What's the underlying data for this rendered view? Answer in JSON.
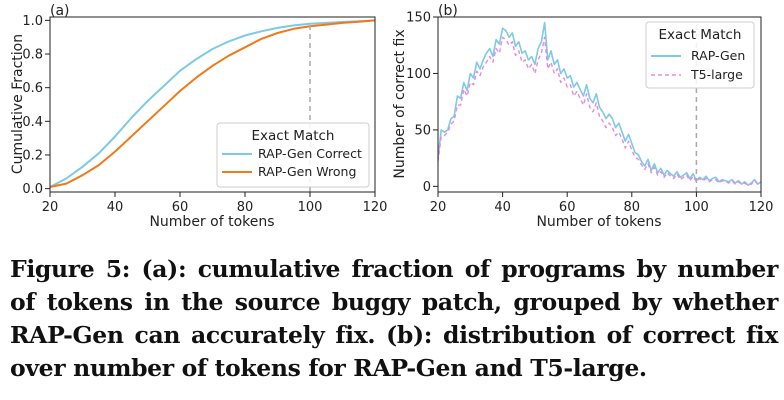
{
  "figure": {
    "caption": "Figure 5: (a): cumulative fraction of programs by number of tokens in the source buggy patch, grouped by whether RAP-Gen can accurately fix. (b): distribution of correct fix over number of tokens for RAP-Gen and T5-large."
  },
  "colors": {
    "cyan": "#7ec9e6",
    "orange": "#ef7a1a",
    "pink": "#e58ae0",
    "refline": "#aaaaaa"
  },
  "chart_data": [
    {
      "type": "line",
      "panel_label": "(a)",
      "xlabel": "Number of tokens",
      "ylabel": "Cumulative Fraction",
      "xlim": [
        20,
        120
      ],
      "ylim": [
        -0.02,
        1.02
      ],
      "xticks": [
        20,
        40,
        60,
        80,
        100,
        120
      ],
      "yticks": [
        0.0,
        0.2,
        0.4,
        0.6,
        0.8,
        1.0
      ],
      "xtick_labels": [
        "20",
        "40",
        "60",
        "80",
        "100",
        "120"
      ],
      "ytick_labels": [
        "0.0",
        "0.2",
        "0.4",
        "0.6",
        "0.8",
        "1.0"
      ],
      "vline_x": 100,
      "legend": {
        "title": "Exact Match",
        "location": "lower-right",
        "entries": [
          "RAP-Gen Correct",
          "RAP-Gen Wrong"
        ]
      },
      "x": [
        20,
        25,
        30,
        35,
        40,
        45,
        50,
        55,
        60,
        65,
        70,
        75,
        80,
        85,
        90,
        95,
        100,
        105,
        110,
        115,
        120
      ],
      "series": [
        {
          "name": "RAP-Gen Correct",
          "color": "cyan",
          "values": [
            0.01,
            0.06,
            0.13,
            0.21,
            0.31,
            0.42,
            0.52,
            0.61,
            0.7,
            0.77,
            0.83,
            0.875,
            0.91,
            0.935,
            0.955,
            0.97,
            0.98,
            0.985,
            0.99,
            0.995,
            1.0
          ]
        },
        {
          "name": "RAP-Gen Wrong",
          "color": "orange",
          "values": [
            0.01,
            0.03,
            0.08,
            0.14,
            0.22,
            0.31,
            0.4,
            0.49,
            0.58,
            0.66,
            0.73,
            0.79,
            0.84,
            0.89,
            0.925,
            0.95,
            0.965,
            0.975,
            0.985,
            0.992,
            1.0
          ]
        }
      ]
    },
    {
      "type": "line",
      "panel_label": "(b)",
      "xlabel": "Number of tokens",
      "ylabel": "Number of correct fix",
      "xlim": [
        20,
        120
      ],
      "ylim": [
        -5,
        150
      ],
      "xticks": [
        20,
        40,
        60,
        80,
        100,
        120
      ],
      "yticks": [
        0,
        50,
        100,
        150
      ],
      "xtick_labels": [
        "20",
        "40",
        "60",
        "80",
        "100",
        "120"
      ],
      "ytick_labels": [
        "0",
        "50",
        "100",
        "150"
      ],
      "vline_x": 100,
      "legend": {
        "title": "Exact Match",
        "location": "upper-right",
        "entries": [
          "RAP-Gen",
          "T5-large"
        ]
      },
      "x": [
        20,
        21,
        22,
        23,
        24,
        25,
        26,
        27,
        28,
        29,
        30,
        31,
        32,
        33,
        34,
        35,
        36,
        37,
        38,
        39,
        40,
        41,
        42,
        43,
        44,
        45,
        46,
        47,
        48,
        49,
        50,
        51,
        52,
        53,
        54,
        55,
        56,
        57,
        58,
        59,
        60,
        61,
        62,
        63,
        64,
        65,
        66,
        67,
        68,
        69,
        70,
        71,
        72,
        73,
        74,
        75,
        76,
        77,
        78,
        79,
        80,
        81,
        82,
        83,
        84,
        85,
        86,
        87,
        88,
        89,
        90,
        91,
        92,
        93,
        94,
        95,
        96,
        97,
        98,
        99,
        100,
        101,
        102,
        103,
        104,
        105,
        106,
        107,
        108,
        109,
        110,
        111,
        112,
        113,
        114,
        115,
        116,
        117,
        118,
        119,
        120
      ],
      "series": [
        {
          "name": "RAP-Gen",
          "color": "cyan",
          "values": [
            25,
            50,
            48,
            50,
            60,
            62,
            80,
            78,
            92,
            85,
            100,
            96,
            110,
            104,
            112,
            118,
            122,
            115,
            130,
            126,
            140,
            138,
            132,
            136,
            124,
            128,
            118,
            120,
            112,
            115,
            108,
            122,
            128,
            145,
            112,
            120,
            108,
            112,
            100,
            104,
            96,
            98,
            88,
            92,
            86,
            80,
            90,
            78,
            74,
            82,
            70,
            66,
            60,
            64,
            60,
            52,
            56,
            48,
            40,
            46,
            38,
            30,
            28,
            22,
            18,
            24,
            14,
            20,
            12,
            16,
            10,
            14,
            11,
            9,
            13,
            8,
            10,
            12,
            7,
            11,
            5,
            8,
            6,
            9,
            5,
            7,
            8,
            4,
            6,
            5,
            4,
            6,
            3,
            5,
            2,
            4,
            1,
            3,
            6,
            2,
            4
          ]
        },
        {
          "name": "T5-large",
          "color": "pink",
          "values": [
            22,
            44,
            45,
            48,
            55,
            58,
            72,
            72,
            86,
            80,
            92,
            90,
            102,
            98,
            106,
            110,
            115,
            110,
            122,
            118,
            132,
            130,
            125,
            128,
            116,
            120,
            110,
            112,
            104,
            108,
            100,
            112,
            118,
            132,
            104,
            110,
            100,
            104,
            92,
            96,
            88,
            90,
            80,
            84,
            78,
            72,
            82,
            70,
            66,
            74,
            62,
            58,
            52,
            56,
            52,
            45,
            48,
            42,
            34,
            40,
            32,
            26,
            24,
            19,
            15,
            20,
            12,
            17,
            10,
            13,
            8,
            12,
            9,
            7,
            11,
            6,
            8,
            10,
            5,
            9,
            4,
            7,
            5,
            7,
            4,
            6,
            6,
            3,
            5,
            4,
            3,
            5,
            2,
            4,
            2,
            3,
            1,
            2,
            5,
            2,
            3
          ]
        }
      ]
    }
  ]
}
